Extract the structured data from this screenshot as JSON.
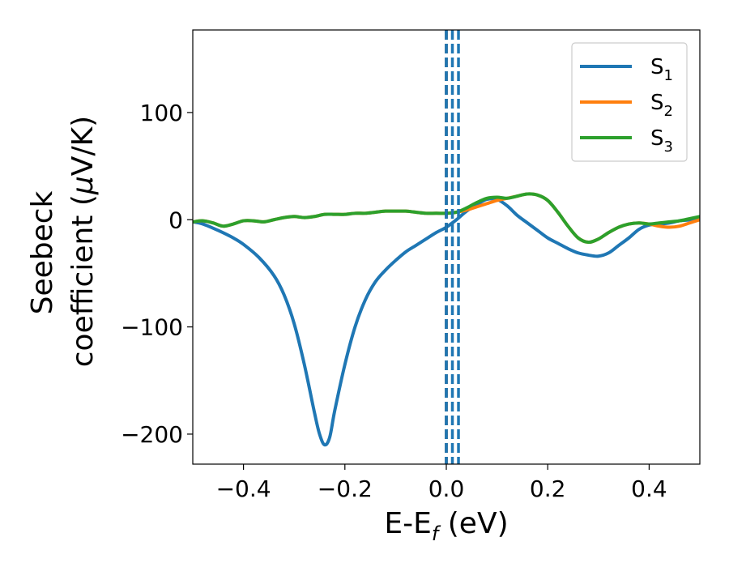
{
  "chart_data": {
    "type": "line",
    "title": "",
    "xlabel": {
      "main": "E-E",
      "sub": "f",
      "unit": " (eV)"
    },
    "ylabel": {
      "line1": "Seebeck",
      "line2_text": "coefficient  (",
      "line2_mu": "μ",
      "line2_unit": "V/K)"
    },
    "xlim": [
      -0.5,
      0.5
    ],
    "ylim": [
      -228,
      177
    ],
    "xticks": [
      -0.4,
      -0.2,
      0.0,
      0.2,
      0.4
    ],
    "xtick_labels": [
      "−0.4",
      "−0.2",
      "0.0",
      "0.2",
      "0.4"
    ],
    "yticks": [
      -200,
      -100,
      0,
      100
    ],
    "ytick_labels": [
      "−200",
      "−100",
      "0",
      "100"
    ],
    "grid": false,
    "legend_position": "top-right",
    "vlines": [
      {
        "x": 0.0,
        "color": "#000000",
        "style": "dashed"
      },
      {
        "x": 0.0,
        "color": "#1f77b4",
        "style": "dashed"
      },
      {
        "x": 0.012,
        "color": "#1f77b4",
        "style": "dashed"
      },
      {
        "x": 0.024,
        "color": "#1f77b4",
        "style": "dashed"
      }
    ],
    "series": [
      {
        "name": "S",
        "sub": "1",
        "color": "#1f77b4",
        "x": [
          -0.5,
          -0.48,
          -0.45,
          -0.42,
          -0.4,
          -0.37,
          -0.34,
          -0.32,
          -0.3,
          -0.28,
          -0.26,
          -0.25,
          -0.24,
          -0.23,
          -0.22,
          -0.2,
          -0.18,
          -0.16,
          -0.14,
          -0.12,
          -0.1,
          -0.08,
          -0.06,
          -0.04,
          -0.02,
          0.0,
          0.02,
          0.04,
          0.06,
          0.08,
          0.1,
          0.12,
          0.14,
          0.16,
          0.18,
          0.2,
          0.22,
          0.24,
          0.26,
          0.28,
          0.3,
          0.32,
          0.34,
          0.36,
          0.38,
          0.4,
          0.42,
          0.44,
          0.46,
          0.48,
          0.5
        ],
        "y": [
          -2,
          -4,
          -10,
          -17,
          -23,
          -35,
          -52,
          -70,
          -97,
          -135,
          -180,
          -200,
          -210,
          -203,
          -178,
          -135,
          -100,
          -75,
          -58,
          -47,
          -38,
          -30,
          -24,
          -18,
          -12,
          -7,
          0,
          8,
          14,
          19,
          19,
          13,
          4,
          -3,
          -10,
          -17,
          -22,
          -27,
          -31,
          -33,
          -34,
          -31,
          -24,
          -17,
          -9,
          -5,
          -4,
          -3,
          -1,
          0,
          3
        ]
      },
      {
        "name": "S",
        "sub": "2",
        "color": "#ff7f0e",
        "x": [
          -0.5,
          -0.48,
          -0.46,
          -0.44,
          -0.42,
          -0.4,
          -0.38,
          -0.36,
          -0.34,
          -0.32,
          -0.3,
          -0.28,
          -0.26,
          -0.24,
          -0.22,
          -0.2,
          -0.18,
          -0.16,
          -0.14,
          -0.12,
          -0.1,
          -0.08,
          -0.06,
          -0.04,
          -0.02,
          0.0,
          0.02,
          0.04,
          0.06,
          0.08,
          0.1,
          0.12,
          0.14,
          0.16,
          0.18,
          0.2,
          0.22,
          0.24,
          0.26,
          0.28,
          0.3,
          0.32,
          0.34,
          0.36,
          0.38,
          0.4,
          0.42,
          0.44,
          0.46,
          0.48,
          0.5
        ],
        "y": [
          -2,
          -1,
          -3,
          -6,
          -4,
          -1,
          -1,
          -2,
          0,
          2,
          3,
          2,
          3,
          5,
          5,
          5,
          6,
          6,
          7,
          8,
          8,
          8,
          7,
          6,
          6,
          6,
          7,
          9,
          12,
          15,
          18,
          20,
          22,
          24,
          23,
          18,
          7,
          -6,
          -17,
          -21,
          -18,
          -12,
          -7,
          -4,
          -3,
          -4,
          -6,
          -7,
          -6,
          -3,
          0
        ]
      },
      {
        "name": "S",
        "sub": "3",
        "color": "#2ca02c",
        "x": [
          -0.5,
          -0.48,
          -0.46,
          -0.44,
          -0.42,
          -0.4,
          -0.38,
          -0.36,
          -0.34,
          -0.32,
          -0.3,
          -0.28,
          -0.26,
          -0.24,
          -0.22,
          -0.2,
          -0.18,
          -0.16,
          -0.14,
          -0.12,
          -0.1,
          -0.08,
          -0.06,
          -0.04,
          -0.02,
          0.0,
          0.02,
          0.04,
          0.06,
          0.08,
          0.1,
          0.12,
          0.14,
          0.16,
          0.18,
          0.2,
          0.22,
          0.24,
          0.26,
          0.28,
          0.3,
          0.32,
          0.34,
          0.36,
          0.38,
          0.4,
          0.42,
          0.44,
          0.46,
          0.48,
          0.5
        ],
        "y": [
          -2,
          -1,
          -3,
          -6,
          -4,
          -1,
          -1,
          -2,
          0,
          2,
          3,
          2,
          3,
          5,
          5,
          5,
          6,
          6,
          7,
          8,
          8,
          8,
          7,
          6,
          6,
          6,
          7,
          11,
          16,
          20,
          21,
          20,
          22,
          24,
          23,
          18,
          7,
          -6,
          -17,
          -21,
          -18,
          -12,
          -7,
          -4,
          -3,
          -4,
          -3,
          -2,
          -1,
          1,
          3
        ]
      }
    ]
  }
}
